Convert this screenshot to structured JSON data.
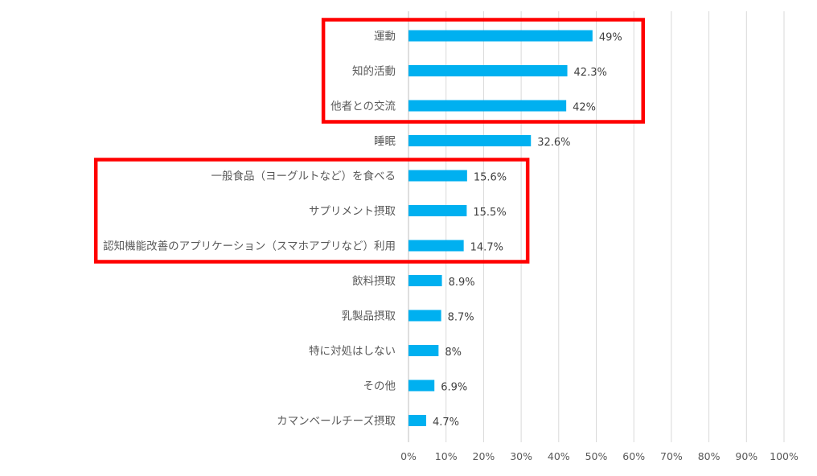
{
  "chart_data": {
    "type": "bar",
    "orientation": "horizontal",
    "categories": [
      "運動",
      "知的活動",
      "他者との交流",
      "睡眠",
      "一般食品（ヨーグルトなど）を食べる",
      "サプリメント摂取",
      "認知機能改善のアプリケーション（スマホアプリなど）利用",
      "飲料摂取",
      "乳製品摂取",
      "特に対処はしない",
      "その他",
      "カマンベールチーズ摂取"
    ],
    "values": [
      49,
      42.3,
      42,
      32.6,
      15.6,
      15.5,
      14.7,
      8.9,
      8.7,
      8,
      6.9,
      4.7
    ],
    "value_labels": [
      "49%",
      "42.3%",
      "42%",
      "32.6%",
      "15.6%",
      "15.5%",
      "14.7%",
      "8.9%",
      "8.7%",
      "8%",
      "6.9%",
      "4.7%"
    ],
    "x_ticks": [
      "0%",
      "10%",
      "20%",
      "30%",
      "40%",
      "50%",
      "60%",
      "70%",
      "80%",
      "90%",
      "100%"
    ],
    "xlim": [
      0,
      100
    ],
    "grid": true,
    "bar_color": "#00b0f0",
    "highlight_color": "#ff0000",
    "highlight_groups": [
      {
        "from_category": "運動",
        "to_category": "他者との交流"
      },
      {
        "from_category": "一般食品（ヨーグルトなど）を食べる",
        "to_category": "認知機能改善のアプリケーション（スマホアプリなど）利用"
      }
    ]
  }
}
